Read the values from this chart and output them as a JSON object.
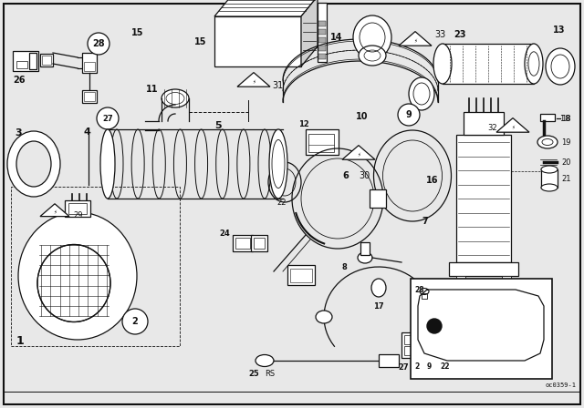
{
  "bg_color": "#e8e8e8",
  "fg_color": "#111111",
  "fig_width": 6.4,
  "fig_height": 4.48,
  "dpi": 100,
  "watermark": "oc0359-1"
}
